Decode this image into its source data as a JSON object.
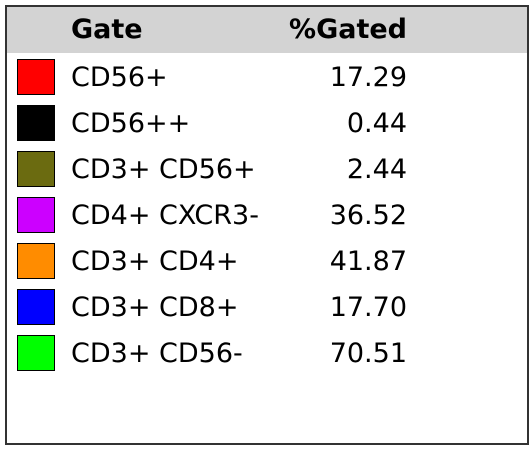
{
  "table": {
    "header": [
      "Gate",
      "%Gated"
    ],
    "rows": [
      {
        "color": "#ff0000",
        "gate": "CD56+",
        "gated": "17.29"
      },
      {
        "color": "#000000",
        "gate": "CD56++",
        "gated": "0.44"
      },
      {
        "color": "#6b6b10",
        "gate": "CD3+ CD56+",
        "gated": "2.44"
      },
      {
        "color": "#cc00ff",
        "gate": "CD4+ CXCR3-",
        "gated": "36.52"
      },
      {
        "color": "#ff8c00",
        "gate": "CD3+ CD4+",
        "gated": "41.87"
      },
      {
        "color": "#0000ff",
        "gate": "CD3+ CD8+",
        "gated": "17.70"
      },
      {
        "color": "#00ff00",
        "gate": "CD3+ CD56-",
        "gated": "70.51"
      }
    ]
  }
}
